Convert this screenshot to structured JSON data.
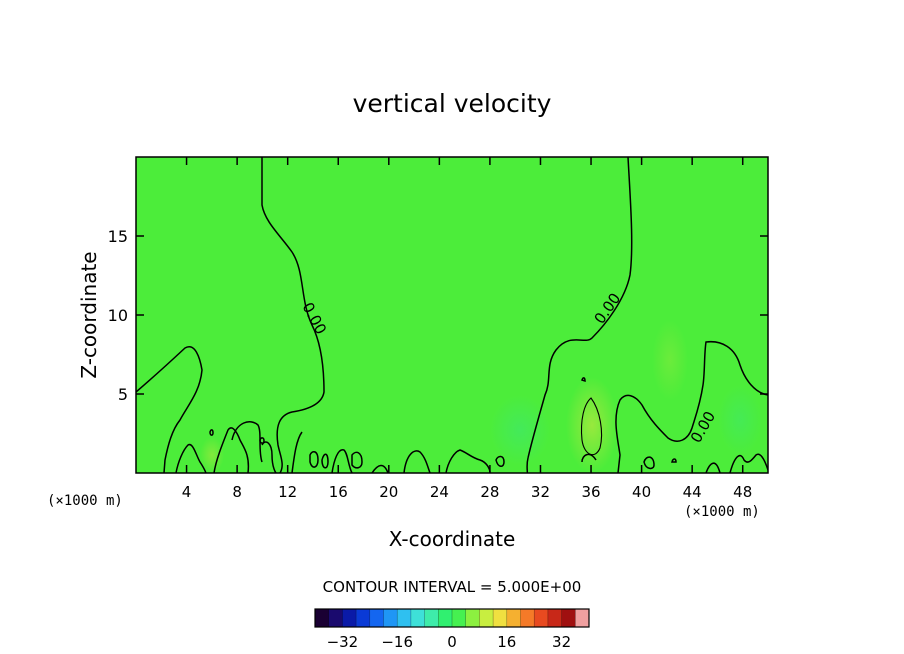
{
  "chart_data": {
    "type": "heatmap",
    "title": "vertical velocity",
    "xlabel": "X-coordinate",
    "ylabel": "Z-coordinate",
    "x_unit_left": "(×1000 m)",
    "x_unit_right": "(×1000 m)",
    "xlim": [
      0,
      50
    ],
    "ylim": [
      0,
      20
    ],
    "x_ticks": [
      4,
      8,
      12,
      16,
      20,
      24,
      28,
      32,
      36,
      40,
      44,
      48
    ],
    "y_ticks": [
      5,
      10,
      15
    ],
    "background_value": 0,
    "contour_interval_text": "CONTOUR INTERVAL = 5.000E+00",
    "contour_labels": [
      "0.00",
      "0.00",
      "0.00"
    ],
    "colorbar": {
      "min": -40,
      "max": 40,
      "ticks": [
        -32,
        -16,
        0,
        16,
        32
      ],
      "colors": [
        "#1a0033",
        "#1a0a6e",
        "#0a1aa8",
        "#0a3ad6",
        "#1466f0",
        "#1f96f5",
        "#2fc0f0",
        "#3ee0d8",
        "#3eecaa",
        "#30f070",
        "#46f050",
        "#8cf040",
        "#c8ee40",
        "#f0e040",
        "#f5b030",
        "#f57a28",
        "#e84a20",
        "#c82818",
        "#a01010",
        "#f0a0a0"
      ]
    }
  }
}
